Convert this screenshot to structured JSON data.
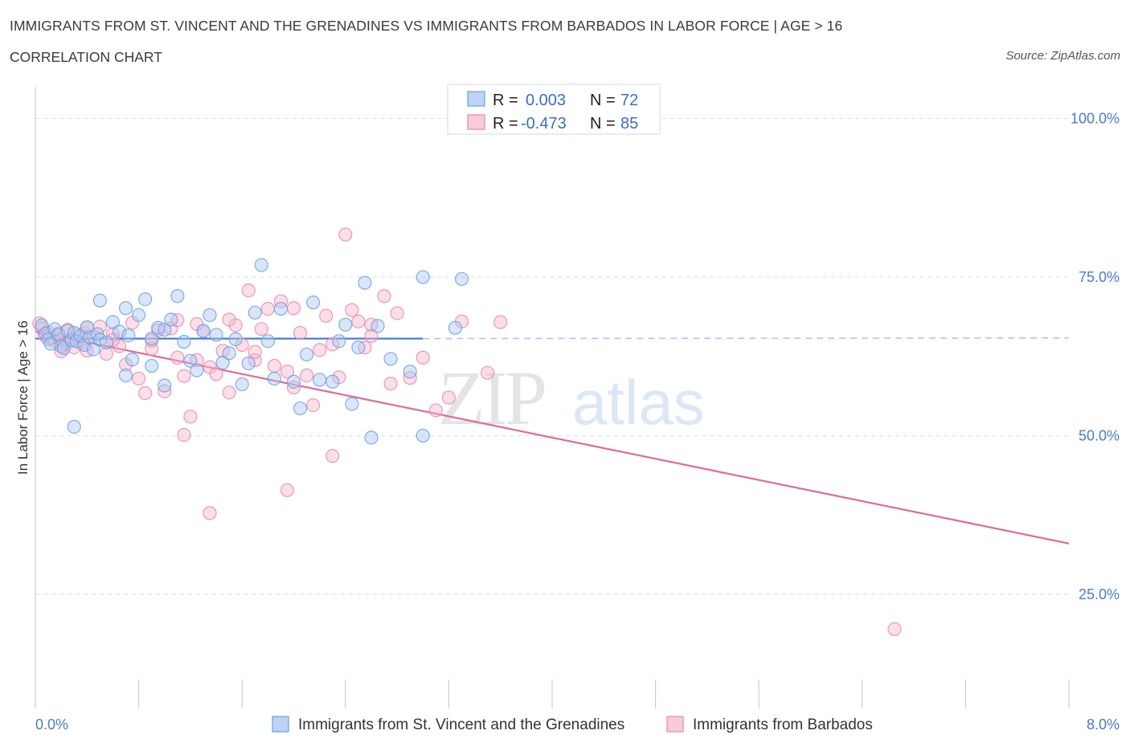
{
  "title": "IMMIGRANTS FROM ST. VINCENT AND THE GRENADINES VS IMMIGRANTS FROM BARBADOS IN LABOR FORCE | AGE > 16",
  "subtitle": "CORRELATION CHART",
  "source": "Source: ZipAtlas.com",
  "watermark": {
    "zip": "ZIP",
    "atlas": "atlas"
  },
  "colors": {
    "blue": "#6f9fe0",
    "blue_fill": "#a9c7f2",
    "blue_line": "#3b78d6",
    "pink": "#ee86a8",
    "pink_fill": "#f5b8cc",
    "pink_line": "#e06a96",
    "grid": "#d8dde3",
    "tick": "#4a7cc7"
  },
  "legend_box": {
    "rows": [
      {
        "r_label": "R =",
        "r_value": "0.003",
        "n_label": "N =",
        "n_value": "72",
        "series": "blue"
      },
      {
        "r_label": "R =",
        "r_value": "-0.473",
        "n_label": "N =",
        "n_value": "85",
        "series": "pink"
      }
    ]
  },
  "chart_data": {
    "type": "scatter",
    "xlabel": "",
    "ylabel": "In Labor Force | Age > 16",
    "xlim": [
      0,
      8
    ],
    "ylim": [
      7,
      105
    ],
    "x_tick_labels": [
      {
        "value": 0,
        "label": "0.0%"
      },
      {
        "value": 8,
        "label": "8.0%"
      }
    ],
    "x_minor_ticks": [
      0.8,
      1.6,
      2.4,
      3.2,
      4.0,
      4.8,
      5.6,
      6.4,
      7.2,
      8.0
    ],
    "y_ticks": [
      {
        "value": 100,
        "label": "100.0%"
      },
      {
        "value": 75,
        "label": "75.0%"
      },
      {
        "value": 50,
        "label": "50.0%"
      },
      {
        "value": 25,
        "label": "25.0%"
      }
    ],
    "series": [
      {
        "name": "Immigrants from St. Vincent and the Grenadines",
        "color": "blue",
        "trend": {
          "x0": 0.0,
          "y0": 65.3,
          "x1": 3.0,
          "y1": 65.3,
          "dash_to_x": 8.0,
          "dash_to_y": 65.4
        },
        "points": [
          [
            0.05,
            67.4
          ],
          [
            0.08,
            66.1
          ],
          [
            0.1,
            65.2
          ],
          [
            0.12,
            64.5
          ],
          [
            0.15,
            66.8
          ],
          [
            0.18,
            65.9
          ],
          [
            0.2,
            64.1
          ],
          [
            0.22,
            63.8
          ],
          [
            0.25,
            66.5
          ],
          [
            0.28,
            65.0
          ],
          [
            0.3,
            66.2
          ],
          [
            0.32,
            64.9
          ],
          [
            0.35,
            65.7
          ],
          [
            0.38,
            64.3
          ],
          [
            0.4,
            67.1
          ],
          [
            0.42,
            65.5
          ],
          [
            0.45,
            63.6
          ],
          [
            0.48,
            66.0
          ],
          [
            0.5,
            65.1
          ],
          [
            0.55,
            64.7
          ],
          [
            0.6,
            67.9
          ],
          [
            0.65,
            66.4
          ],
          [
            0.7,
            70.1
          ],
          [
            0.72,
            65.8
          ],
          [
            0.75,
            62.0
          ],
          [
            0.8,
            69.0
          ],
          [
            0.85,
            71.5
          ],
          [
            0.9,
            65.3
          ],
          [
            0.95,
            67.0
          ],
          [
            1.0,
            66.7
          ],
          [
            1.05,
            68.3
          ],
          [
            1.1,
            72.0
          ],
          [
            1.15,
            64.8
          ],
          [
            1.2,
            61.8
          ],
          [
            1.25,
            60.3
          ],
          [
            1.3,
            66.5
          ],
          [
            1.35,
            69.0
          ],
          [
            1.4,
            65.9
          ],
          [
            1.45,
            61.5
          ],
          [
            1.5,
            63.0
          ],
          [
            1.55,
            65.2
          ],
          [
            1.6,
            58.1
          ],
          [
            1.65,
            61.4
          ],
          [
            1.7,
            69.4
          ],
          [
            1.75,
            76.9
          ],
          [
            1.8,
            64.9
          ],
          [
            1.85,
            59.0
          ],
          [
            1.9,
            70.0
          ],
          [
            2.0,
            58.5
          ],
          [
            2.05,
            54.3
          ],
          [
            2.1,
            62.8
          ],
          [
            2.15,
            71.0
          ],
          [
            2.2,
            58.8
          ],
          [
            2.3,
            58.5
          ],
          [
            2.35,
            64.9
          ],
          [
            2.4,
            67.5
          ],
          [
            2.45,
            55.0
          ],
          [
            2.5,
            63.9
          ],
          [
            2.55,
            74.1
          ],
          [
            2.6,
            49.7
          ],
          [
            2.65,
            67.3
          ],
          [
            2.75,
            62.1
          ],
          [
            2.9,
            60.1
          ],
          [
            3.0,
            50.0
          ],
          [
            0.3,
            51.4
          ],
          [
            0.5,
            71.3
          ],
          [
            0.7,
            59.5
          ],
          [
            0.9,
            61.0
          ],
          [
            1.0,
            57.9
          ],
          [
            3.0,
            75.0
          ],
          [
            3.25,
            67.0
          ],
          [
            3.3,
            74.7
          ]
        ]
      },
      {
        "name": "Immigrants from Barbados",
        "color": "pink",
        "trend": {
          "x0": 0.0,
          "y0": 66.4,
          "x1": 8.0,
          "y1": 33.0
        },
        "points": [
          [
            0.03,
            67.7
          ],
          [
            0.05,
            66.9
          ],
          [
            0.07,
            65.8
          ],
          [
            0.1,
            66.3
          ],
          [
            0.12,
            65.4
          ],
          [
            0.15,
            64.9
          ],
          [
            0.18,
            66.1
          ],
          [
            0.2,
            65.0
          ],
          [
            0.22,
            64.4
          ],
          [
            0.25,
            66.7
          ],
          [
            0.28,
            65.3
          ],
          [
            0.3,
            63.9
          ],
          [
            0.32,
            65.9
          ],
          [
            0.35,
            64.6
          ],
          [
            0.38,
            66.2
          ],
          [
            0.4,
            63.4
          ],
          [
            0.45,
            65.6
          ],
          [
            0.5,
            67.2
          ],
          [
            0.55,
            62.9
          ],
          [
            0.6,
            66.0
          ],
          [
            0.65,
            64.1
          ],
          [
            0.7,
            61.2
          ],
          [
            0.75,
            67.8
          ],
          [
            0.8,
            59.0
          ],
          [
            0.85,
            56.7
          ],
          [
            0.9,
            63.7
          ],
          [
            0.95,
            66.6
          ],
          [
            1.0,
            57.0
          ],
          [
            1.05,
            66.9
          ],
          [
            1.1,
            62.3
          ],
          [
            1.15,
            59.4
          ],
          [
            1.2,
            53.0
          ],
          [
            1.25,
            61.9
          ],
          [
            1.3,
            66.5
          ],
          [
            1.35,
            60.8
          ],
          [
            1.4,
            59.7
          ],
          [
            1.45,
            63.4
          ],
          [
            1.5,
            56.8
          ],
          [
            1.55,
            67.4
          ],
          [
            1.6,
            64.3
          ],
          [
            1.65,
            72.9
          ],
          [
            1.7,
            61.9
          ],
          [
            1.75,
            66.8
          ],
          [
            1.8,
            70.0
          ],
          [
            1.85,
            61.0
          ],
          [
            1.9,
            71.2
          ],
          [
            1.95,
            60.1
          ],
          [
            2.0,
            57.6
          ],
          [
            2.05,
            66.2
          ],
          [
            2.1,
            59.5
          ],
          [
            2.15,
            54.8
          ],
          [
            2.2,
            63.5
          ],
          [
            2.25,
            68.9
          ],
          [
            2.3,
            46.8
          ],
          [
            2.35,
            59.2
          ],
          [
            2.4,
            81.7
          ],
          [
            2.45,
            69.8
          ],
          [
            2.5,
            68.0
          ],
          [
            2.55,
            63.9
          ],
          [
            2.6,
            67.5
          ],
          [
            2.7,
            72.0
          ],
          [
            2.8,
            69.3
          ],
          [
            2.9,
            59.1
          ],
          [
            3.0,
            62.3
          ],
          [
            3.1,
            54.0
          ],
          [
            3.2,
            56.0
          ],
          [
            3.3,
            68.0
          ],
          [
            3.5,
            59.9
          ],
          [
            3.6,
            67.9
          ],
          [
            1.15,
            50.1
          ],
          [
            1.35,
            37.8
          ],
          [
            1.95,
            41.4
          ],
          [
            6.65,
            19.5
          ],
          [
            0.4,
            67.0
          ],
          [
            0.6,
            65.1
          ],
          [
            0.9,
            65.0
          ],
          [
            1.1,
            68.2
          ],
          [
            1.5,
            68.3
          ],
          [
            1.7,
            63.2
          ],
          [
            2.0,
            70.1
          ],
          [
            2.3,
            64.4
          ],
          [
            2.6,
            65.7
          ],
          [
            2.75,
            58.2
          ],
          [
            0.2,
            63.3
          ],
          [
            1.25,
            67.6
          ]
        ]
      }
    ]
  }
}
